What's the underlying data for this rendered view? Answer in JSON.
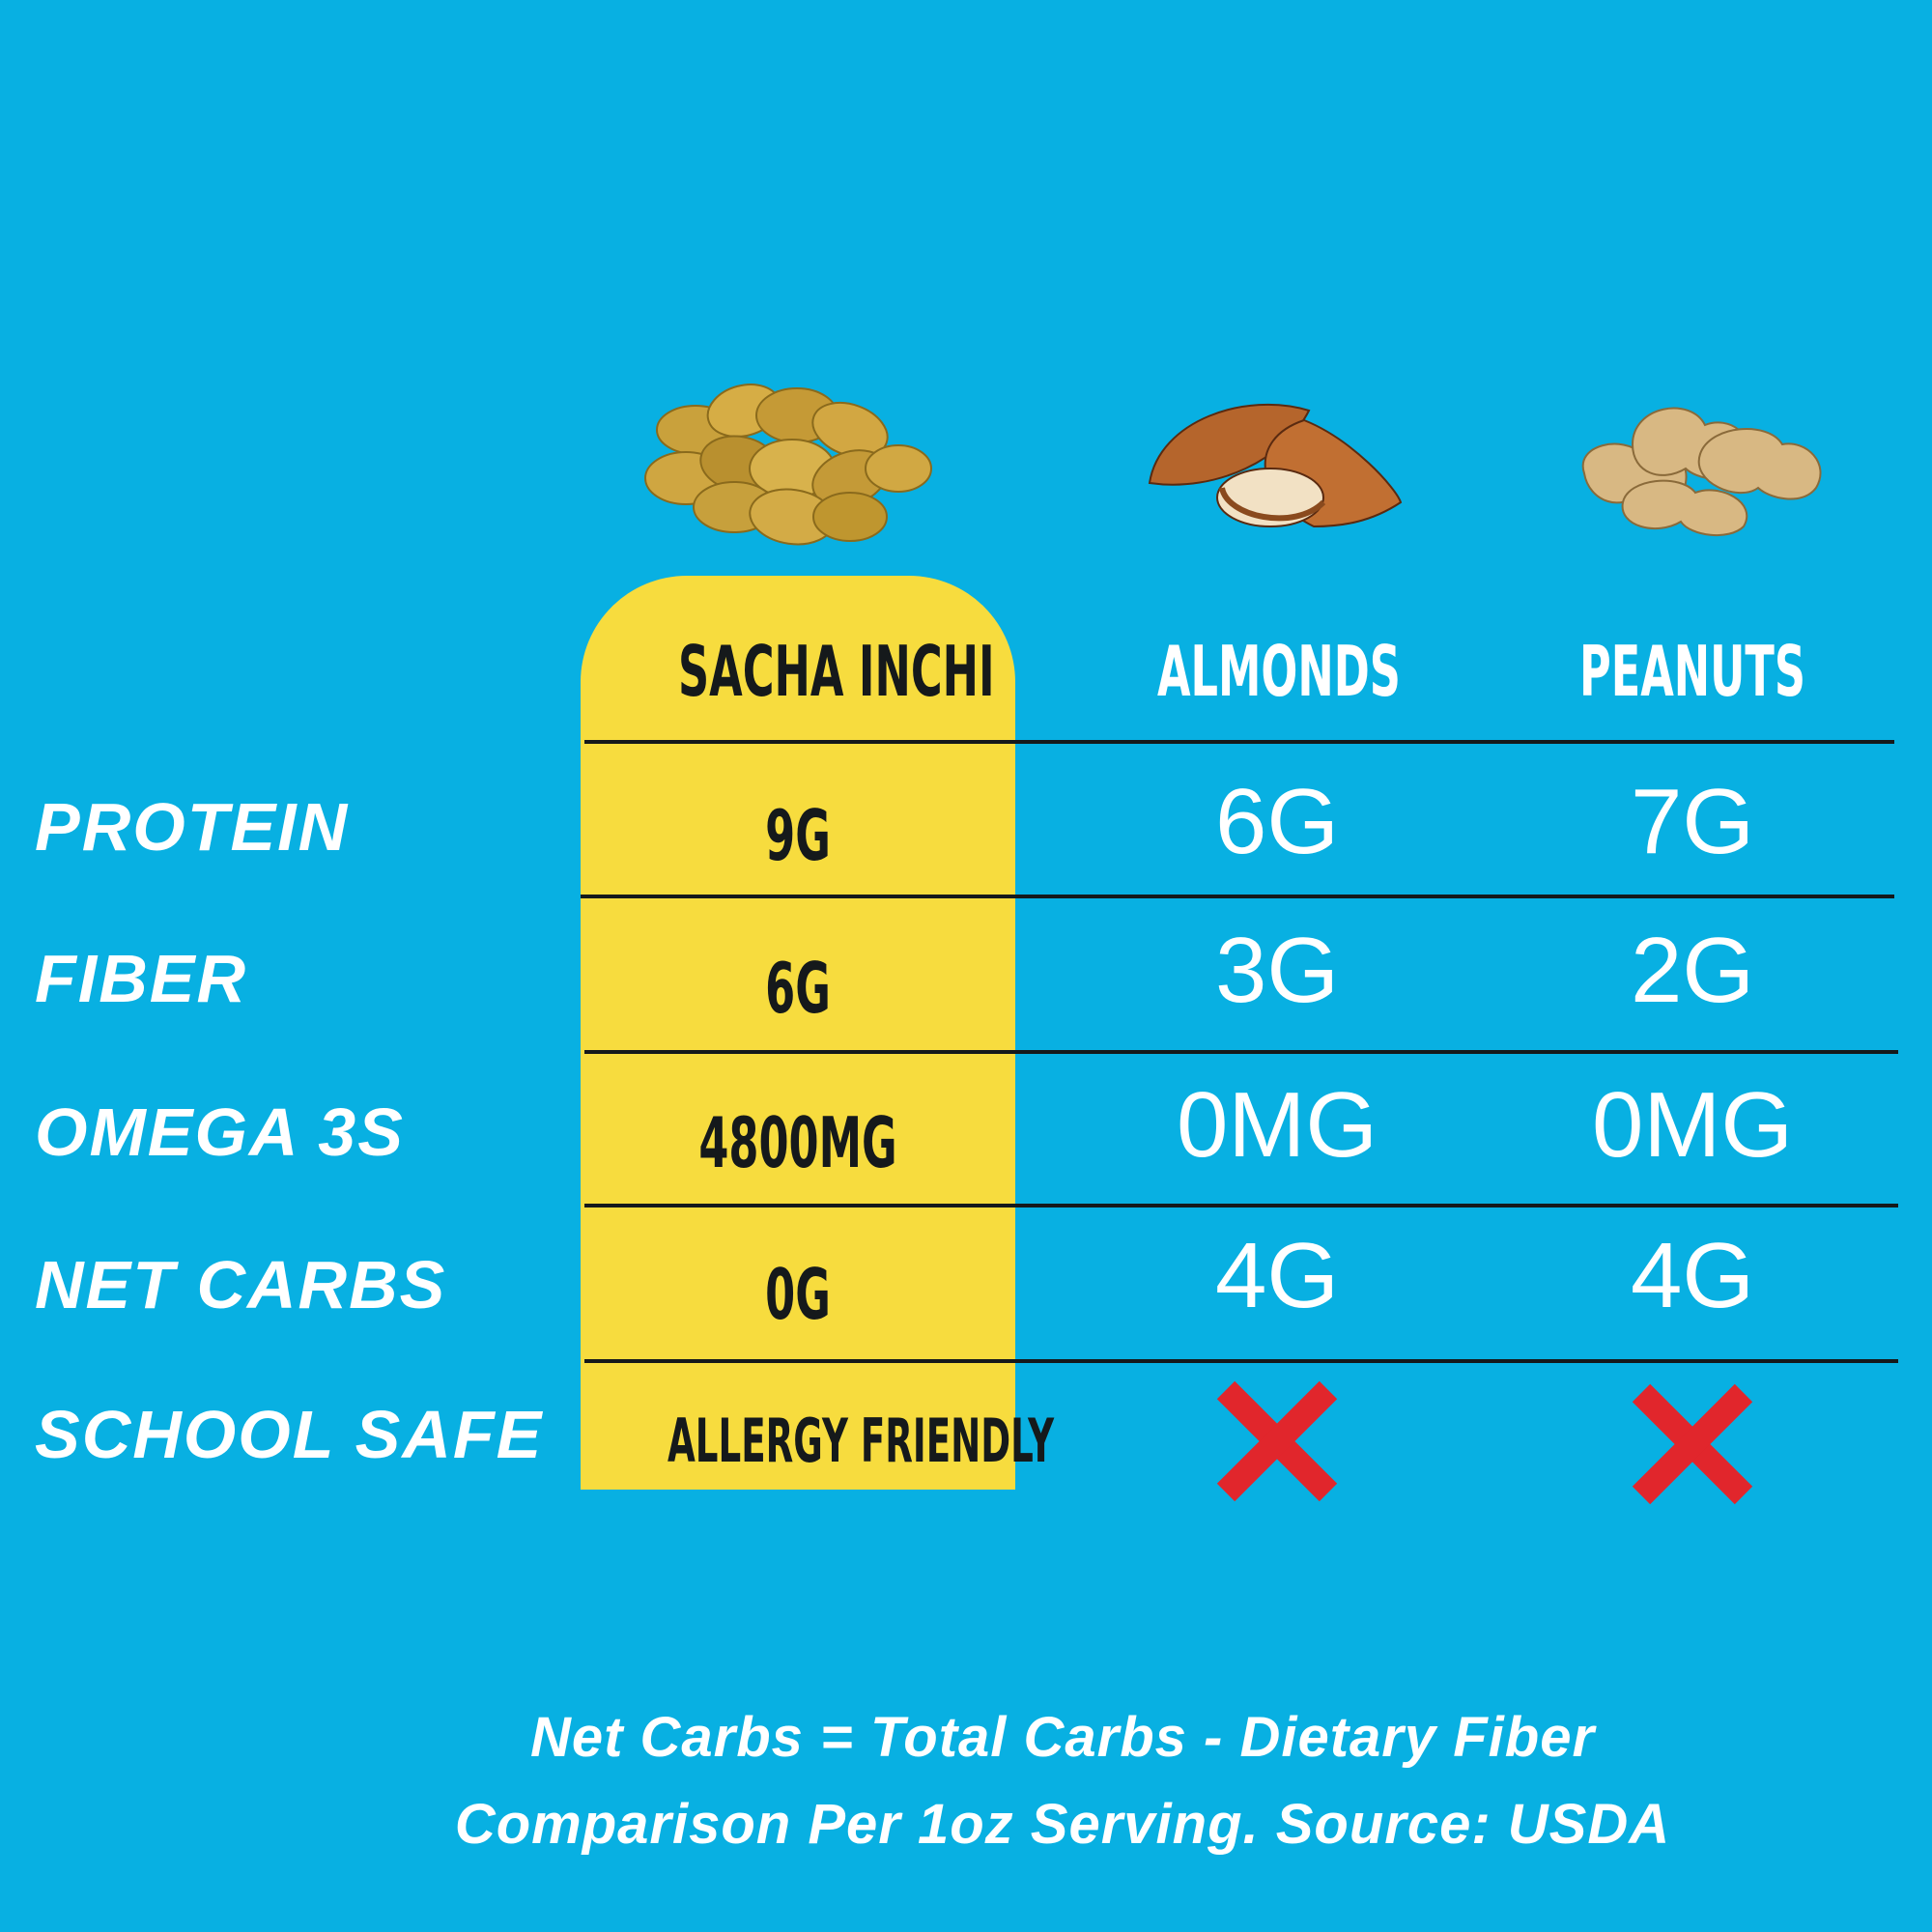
{
  "colors": {
    "background": "#08b0e2",
    "highlight": "#f7dc3e",
    "text_light": "#ffffff",
    "text_dark": "#15191b",
    "x_mark": "#e1262c"
  },
  "columns": [
    {
      "name": "SACHA INCHI",
      "image": "sacha-inchi-seeds"
    },
    {
      "name": "ALMONDS",
      "image": "almonds"
    },
    {
      "name": "PEANUTS",
      "image": "peanuts"
    }
  ],
  "rows": [
    {
      "label": "PROTEIN",
      "values": [
        "9G",
        "6G",
        "7G"
      ]
    },
    {
      "label": "FIBER",
      "values": [
        "6G",
        "3G",
        "2G"
      ]
    },
    {
      "label": "OMEGA 3S",
      "values": [
        "4800MG",
        "0MG",
        "0MG"
      ]
    },
    {
      "label": "NET CARBS",
      "values": [
        "0G",
        "4G",
        "4G"
      ]
    },
    {
      "label": "SCHOOL SAFE",
      "values": [
        "ALLERGY FRIENDLY",
        "x-icon",
        "x-icon"
      ]
    }
  ],
  "footnotes": {
    "line1": "Net Carbs = Total Carbs - Dietary Fiber",
    "line2": "Comparison Per 1oz Serving. Source: USDA"
  }
}
